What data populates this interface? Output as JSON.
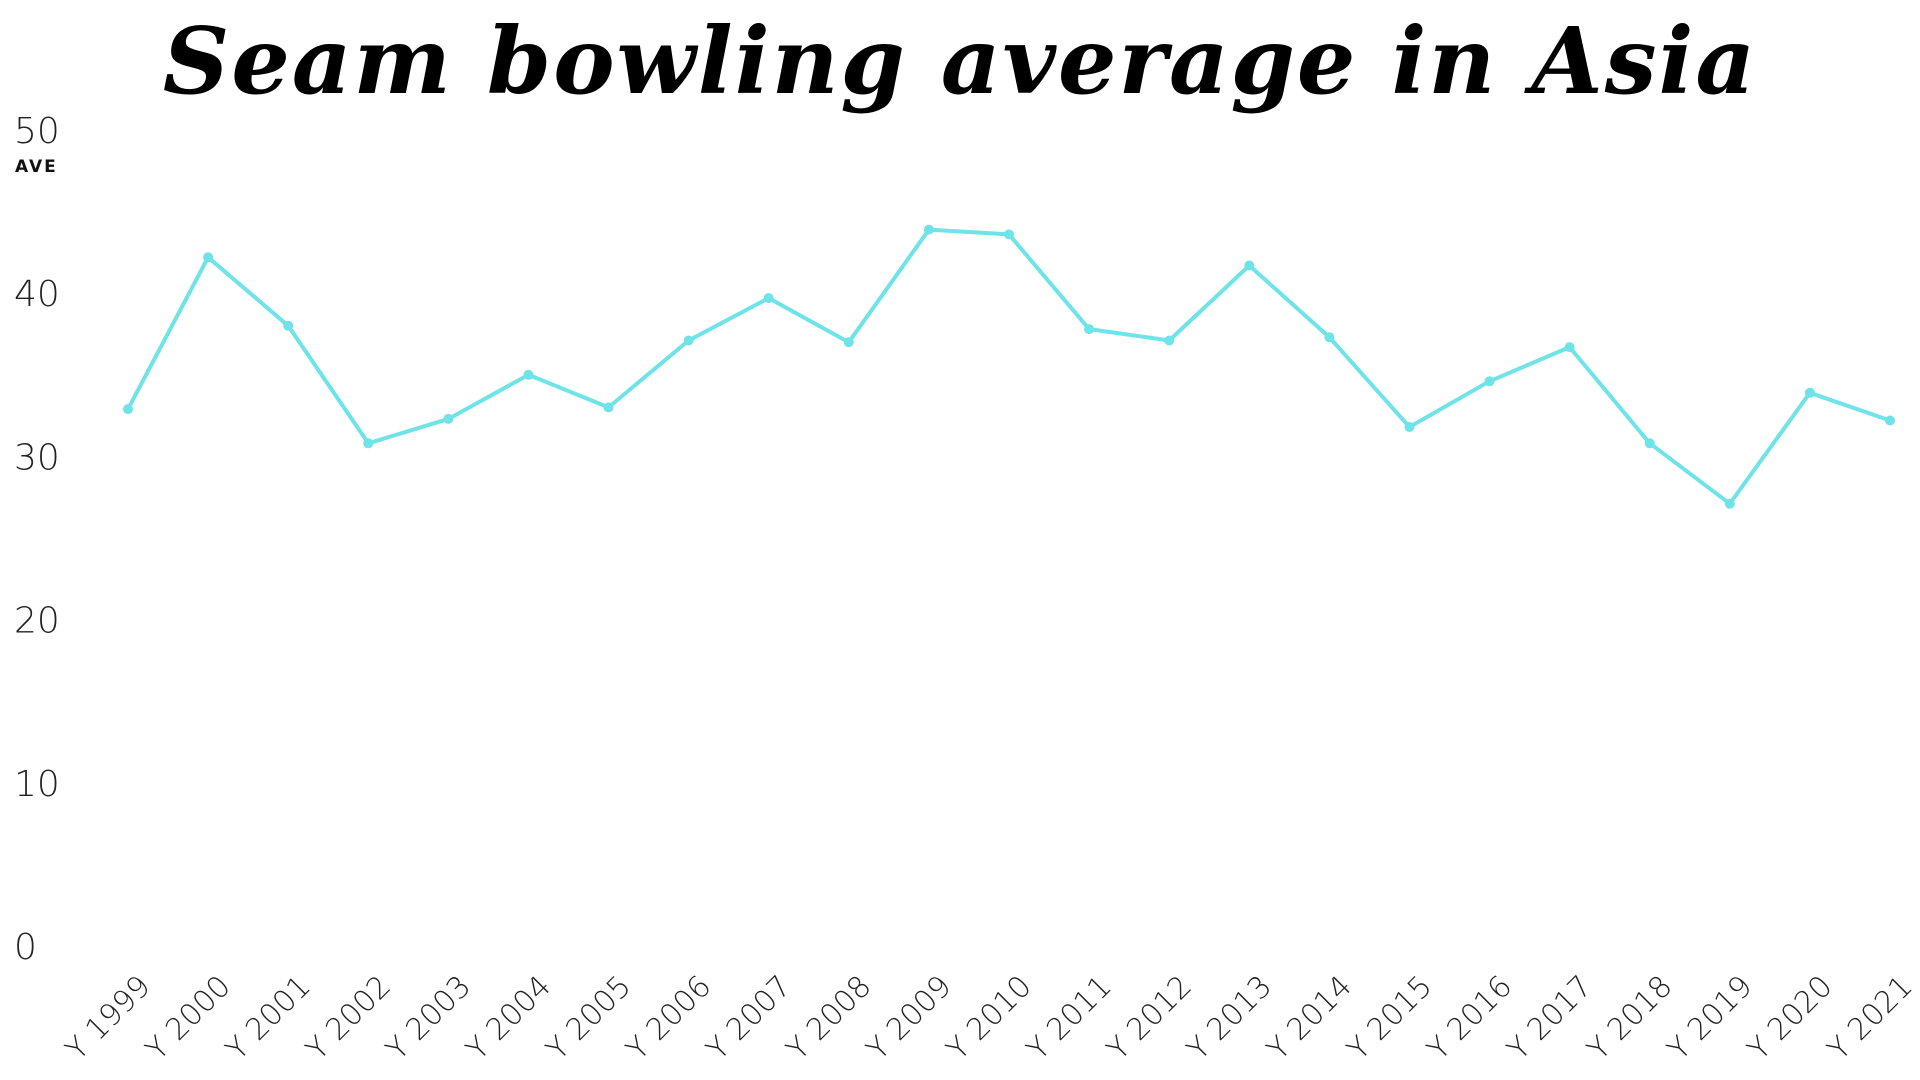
{
  "chart_data": {
    "type": "line",
    "title": "Seam bowling average in Asia",
    "xlabel": "",
    "ylabel": "AVE",
    "ylim": [
      0,
      50
    ],
    "yticks": [
      "0",
      "10",
      "20",
      "30",
      "40",
      "50"
    ],
    "grid": false,
    "legend": "none",
    "color": "#6ee3e8",
    "categories": [
      "Y 1999",
      "Y 2000",
      "Y 2001",
      "Y 2002",
      "Y 2003",
      "Y 2004",
      "Y 2005",
      "Y 2006",
      "Y 2007",
      "Y 2008",
      "Y 2009",
      "Y 2010",
      "Y 2011",
      "Y 2012",
      "Y 2013",
      "Y 2014",
      "Y 2015",
      "Y 2016",
      "Y 2017",
      "Y 2018",
      "Y 2019",
      "Y 2020",
      "Y 2021"
    ],
    "series": [
      {
        "values": [
          32.9,
          42.2,
          38.0,
          30.8,
          32.3,
          35.0,
          33.0,
          37.1,
          39.7,
          37.0,
          43.9,
          43.6,
          37.8,
          37.1,
          41.7,
          37.3,
          31.8,
          34.6,
          36.7,
          30.8,
          27.1,
          33.9,
          32.2
        ]
      }
    ]
  }
}
